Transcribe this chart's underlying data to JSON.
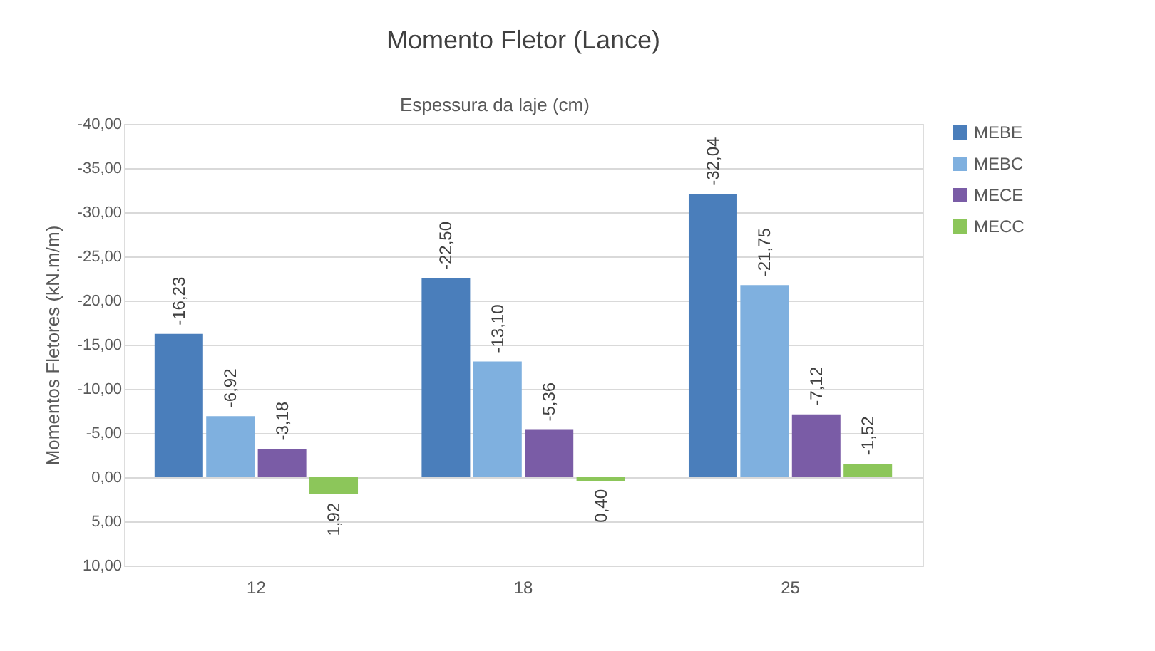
{
  "chart_data": {
    "type": "bar",
    "title": "Momento Fletor (Lance)",
    "xlabel": "Espessura da laje (cm)",
    "ylabel": "Momentos Fletores (kN.m/m)",
    "categories": [
      "12",
      "18",
      "25"
    ],
    "series": [
      {
        "name": "MEBE",
        "color": "#4a7ebb",
        "values": [
          -16.23,
          -22.5,
          -32.04
        ],
        "value_labels": [
          "-16,23",
          "-22,50",
          "-32,04"
        ]
      },
      {
        "name": "MEBC",
        "color": "#7fb0df",
        "values": [
          -6.92,
          -13.1,
          -21.75
        ],
        "value_labels": [
          "-6,92",
          "-13,10",
          "-21,75"
        ]
      },
      {
        "name": "MECE",
        "color": "#7a5ca6",
        "values": [
          -3.18,
          -5.36,
          -7.12
        ],
        "value_labels": [
          "-3,18",
          "-5,36",
          "-7,12"
        ]
      },
      {
        "name": "MECC",
        "color": "#8cc65a",
        "values": [
          1.92,
          0.4,
          -1.52
        ],
        "value_labels": [
          "1,92",
          "0,40",
          "-1,52"
        ]
      }
    ],
    "ylim": [
      10,
      -40
    ],
    "yticks": [
      {
        "value": -40,
        "label": "-40,00"
      },
      {
        "value": -35,
        "label": "-35,00"
      },
      {
        "value": -30,
        "label": "-30,00"
      },
      {
        "value": -25,
        "label": "-25,00"
      },
      {
        "value": -20,
        "label": "-20,00"
      },
      {
        "value": -15,
        "label": "-15,00"
      },
      {
        "value": -10,
        "label": "-10,00"
      },
      {
        "value": -5,
        "label": "-5,00"
      },
      {
        "value": 0,
        "label": "0,00"
      },
      {
        "value": 5,
        "label": "5,00"
      },
      {
        "value": 10,
        "label": "10,00"
      }
    ],
    "grid": "y",
    "legend": "right"
  }
}
